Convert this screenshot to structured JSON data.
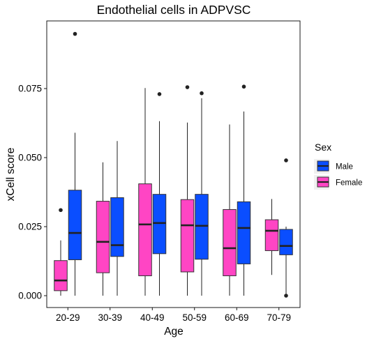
{
  "chart_data": {
    "type": "boxplot",
    "title": "Endothelial cells in ADPVSC",
    "xlabel": "Age",
    "ylabel": "xCell score",
    "categories": [
      "20-29",
      "30-39",
      "40-49",
      "50-59",
      "60-69",
      "70-79"
    ],
    "ylim": [
      -0.0035,
      0.1
    ],
    "yticks": [
      0.0,
      0.025,
      0.05,
      0.075
    ],
    "ytick_labels": [
      "0.000",
      "0.025",
      "0.050",
      "0.075"
    ],
    "grid": false,
    "legend": {
      "title": "Sex",
      "position": "right",
      "entries": [
        {
          "label": "Male",
          "color": "#0A4EFF"
        },
        {
          "label": "Female",
          "color": "#FF45C4"
        }
      ]
    },
    "series": [
      {
        "name": "Female",
        "color": "#FF45C4",
        "boxes": [
          {
            "category": "20-29",
            "whisker_low": 0.0,
            "q1": 0.0018,
            "median": 0.0055,
            "q3": 0.0127,
            "whisker_high": 0.02,
            "outliers": [
              0.031
            ]
          },
          {
            "category": "30-39",
            "whisker_low": 0.0,
            "q1": 0.0083,
            "median": 0.0195,
            "q3": 0.0342,
            "whisker_high": 0.0483,
            "outliers": []
          },
          {
            "category": "40-49",
            "whisker_low": 0.0,
            "q1": 0.0072,
            "median": 0.0258,
            "q3": 0.0405,
            "whisker_high": 0.0752,
            "outliers": []
          },
          {
            "category": "50-59",
            "whisker_low": 0.0,
            "q1": 0.0086,
            "median": 0.0255,
            "q3": 0.0348,
            "whisker_high": 0.0627,
            "outliers": [
              0.0755
            ]
          },
          {
            "category": "60-69",
            "whisker_low": 0.0,
            "q1": 0.0072,
            "median": 0.0172,
            "q3": 0.0312,
            "whisker_high": 0.062,
            "outliers": []
          },
          {
            "category": "70-79",
            "whisker_low": 0.0075,
            "q1": 0.0163,
            "median": 0.0235,
            "q3": 0.0275,
            "whisker_high": 0.035,
            "outliers": []
          }
        ]
      },
      {
        "name": "Male",
        "color": "#0A4EFF",
        "boxes": [
          {
            "category": "20-29",
            "whisker_low": 0.0,
            "q1": 0.013,
            "median": 0.0227,
            "q3": 0.0382,
            "whisker_high": 0.059,
            "outliers": [
              0.0948
            ]
          },
          {
            "category": "30-39",
            "whisker_low": 0.0,
            "q1": 0.0142,
            "median": 0.0183,
            "q3": 0.0355,
            "whisker_high": 0.056,
            "outliers": []
          },
          {
            "category": "40-49",
            "whisker_low": 0.0,
            "q1": 0.0152,
            "median": 0.0263,
            "q3": 0.0367,
            "whisker_high": 0.0632,
            "outliers": [
              0.073
            ]
          },
          {
            "category": "50-59",
            "whisker_low": 0.0,
            "q1": 0.0132,
            "median": 0.0253,
            "q3": 0.0367,
            "whisker_high": 0.0715,
            "outliers": [
              0.0733
            ]
          },
          {
            "category": "60-69",
            "whisker_low": 0.0,
            "q1": 0.0115,
            "median": 0.0245,
            "q3": 0.034,
            "whisker_high": 0.0667,
            "outliers": [
              0.0757
            ]
          },
          {
            "category": "70-79",
            "whisker_low": 0.0,
            "q1": 0.0148,
            "median": 0.018,
            "q3": 0.024,
            "whisker_high": 0.025,
            "outliers": [
              0.049,
              0.0
            ]
          }
        ]
      }
    ]
  }
}
